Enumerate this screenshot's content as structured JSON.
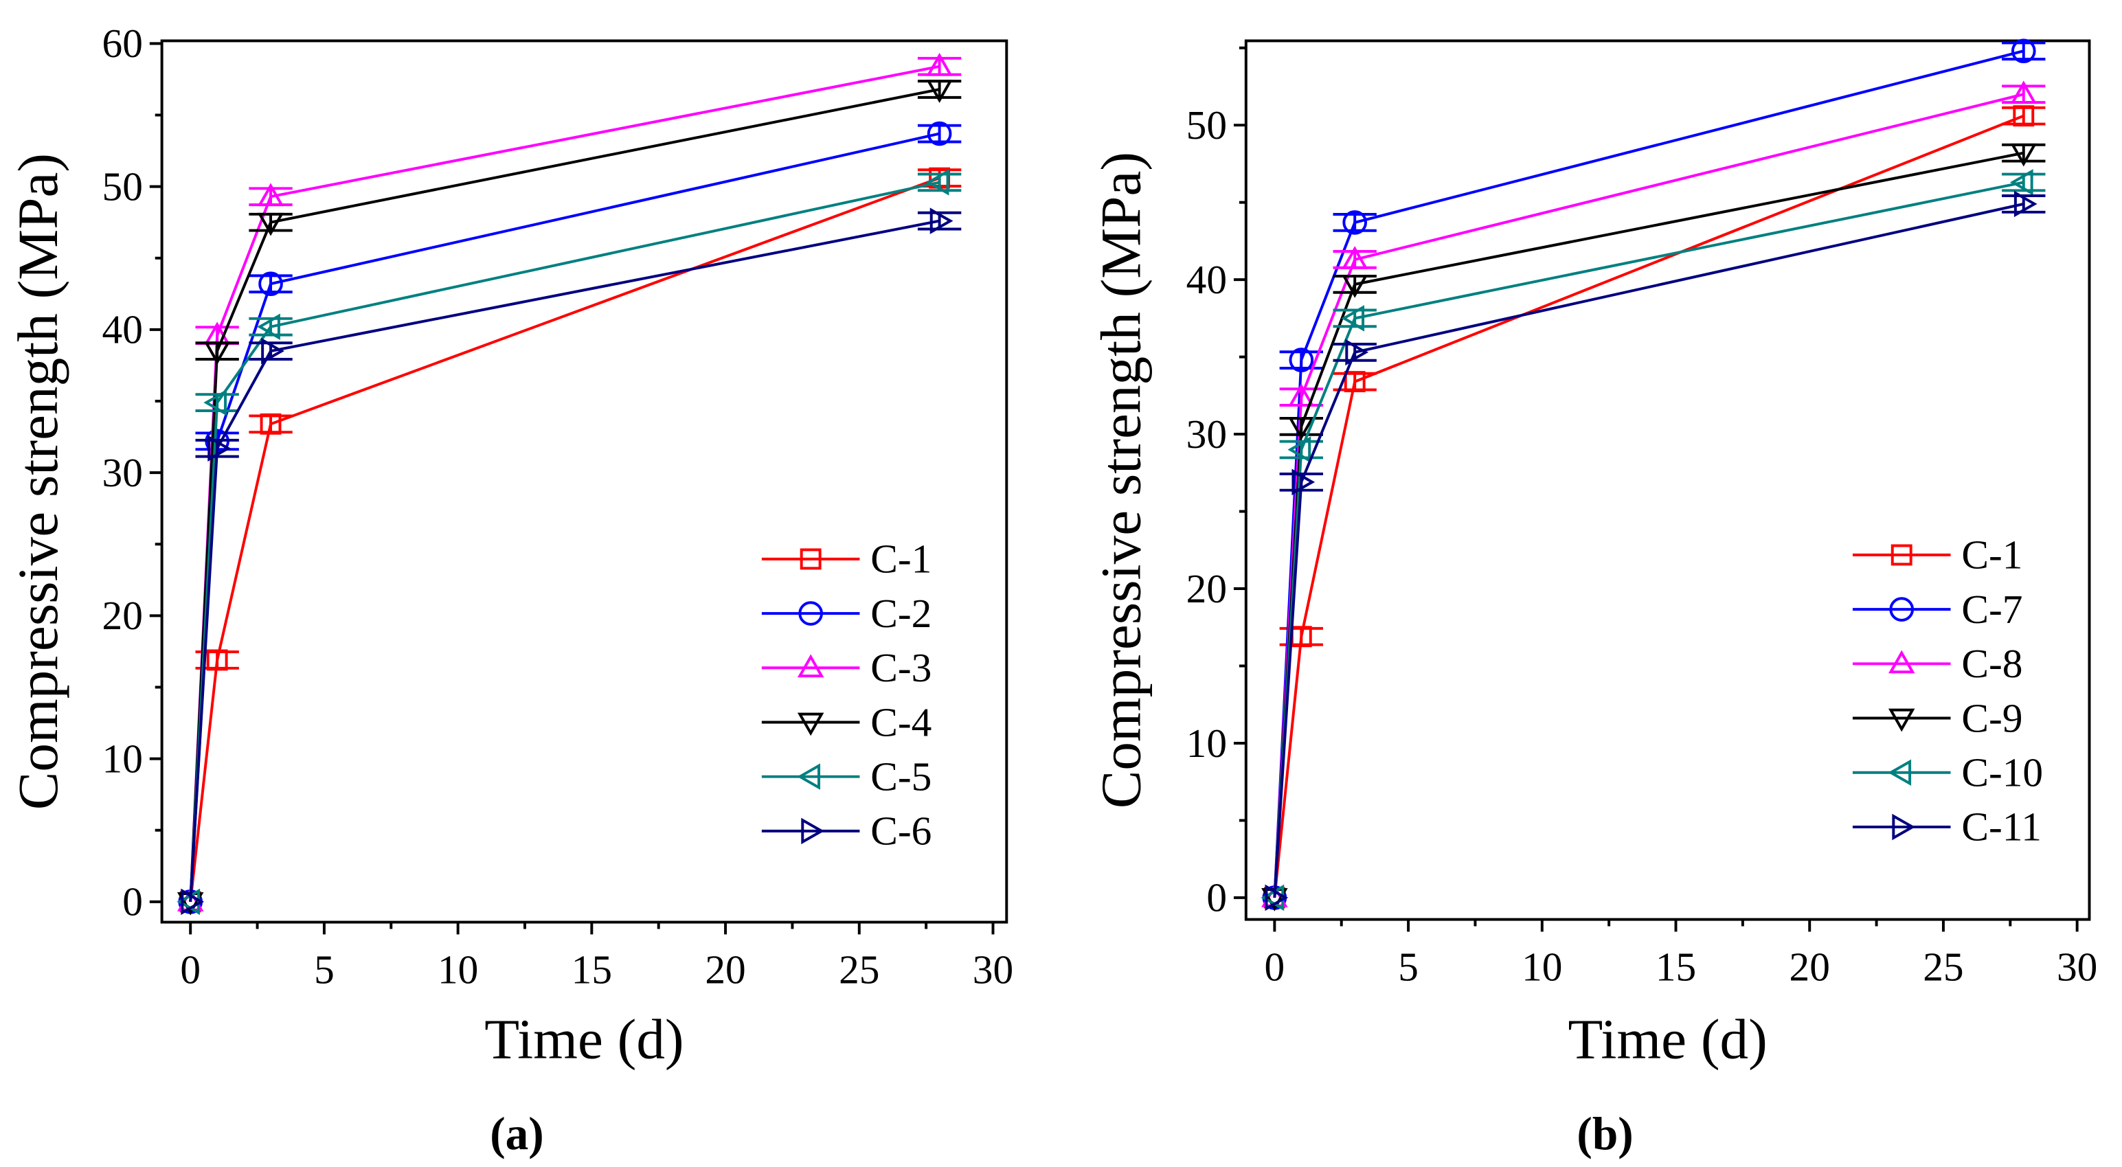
{
  "chart_data": [
    {
      "type": "line",
      "panel_label": "(a)",
      "xlabel": "Time (d)",
      "ylabel": "Compressive strength (MPa)",
      "xlim": [
        -1,
        30
      ],
      "ylim": [
        -1,
        60
      ],
      "xticks": [
        0,
        5,
        10,
        15,
        20,
        25,
        30
      ],
      "yticks": [
        0,
        10,
        20,
        30,
        40,
        50,
        60
      ],
      "legend_position": "bottom-right",
      "x": [
        0,
        1,
        3,
        28
      ],
      "series": [
        {
          "name": "C-1",
          "color": "#ff0000",
          "marker": "square",
          "values": [
            0,
            16.9,
            33.4,
            50.6
          ]
        },
        {
          "name": "C-2",
          "color": "#0000ff",
          "marker": "circle",
          "values": [
            0,
            32.2,
            43.2,
            53.7
          ]
        },
        {
          "name": "C-3",
          "color": "#ff00ff",
          "marker": "triangle-up",
          "values": [
            0,
            39.6,
            49.3,
            58.4
          ]
        },
        {
          "name": "C-4",
          "color": "#000000",
          "marker": "triangle-down",
          "values": [
            0,
            38.5,
            47.5,
            56.8
          ]
        },
        {
          "name": "C-5",
          "color": "#008080",
          "marker": "triangle-left",
          "values": [
            0,
            34.9,
            40.2,
            50.3
          ]
        },
        {
          "name": "C-6",
          "color": "#000080",
          "marker": "triangle-right",
          "values": [
            0,
            31.7,
            38.5,
            47.6
          ]
        }
      ]
    },
    {
      "type": "line",
      "panel_label": "(b)",
      "xlabel": "Time (d)",
      "ylabel": "Compressive strength (MPa)",
      "xlim": [
        -1,
        30
      ],
      "ylim": [
        -1,
        55.5
      ],
      "xticks": [
        0,
        5,
        10,
        15,
        20,
        25,
        30
      ],
      "yticks": [
        0,
        10,
        20,
        30,
        40,
        50
      ],
      "legend_position": "bottom-right",
      "x": [
        0,
        1,
        3,
        28
      ],
      "series": [
        {
          "name": "C-1",
          "color": "#ff0000",
          "marker": "square",
          "values": [
            0,
            16.9,
            33.4,
            50.6
          ]
        },
        {
          "name": "C-7",
          "color": "#0000ff",
          "marker": "circle",
          "values": [
            0,
            34.8,
            43.7,
            54.8
          ]
        },
        {
          "name": "C-8",
          "color": "#ff00ff",
          "marker": "triangle-up",
          "values": [
            0,
            32.4,
            41.3,
            52.0
          ]
        },
        {
          "name": "C-9",
          "color": "#000000",
          "marker": "triangle-down",
          "values": [
            0,
            30.5,
            39.7,
            48.2
          ]
        },
        {
          "name": "C-10",
          "color": "#008080",
          "marker": "triangle-left",
          "values": [
            0,
            29.0,
            37.5,
            46.3
          ]
        },
        {
          "name": "C-11",
          "color": "#000080",
          "marker": "triangle-right",
          "values": [
            0,
            26.9,
            35.3,
            44.9
          ]
        }
      ]
    }
  ]
}
